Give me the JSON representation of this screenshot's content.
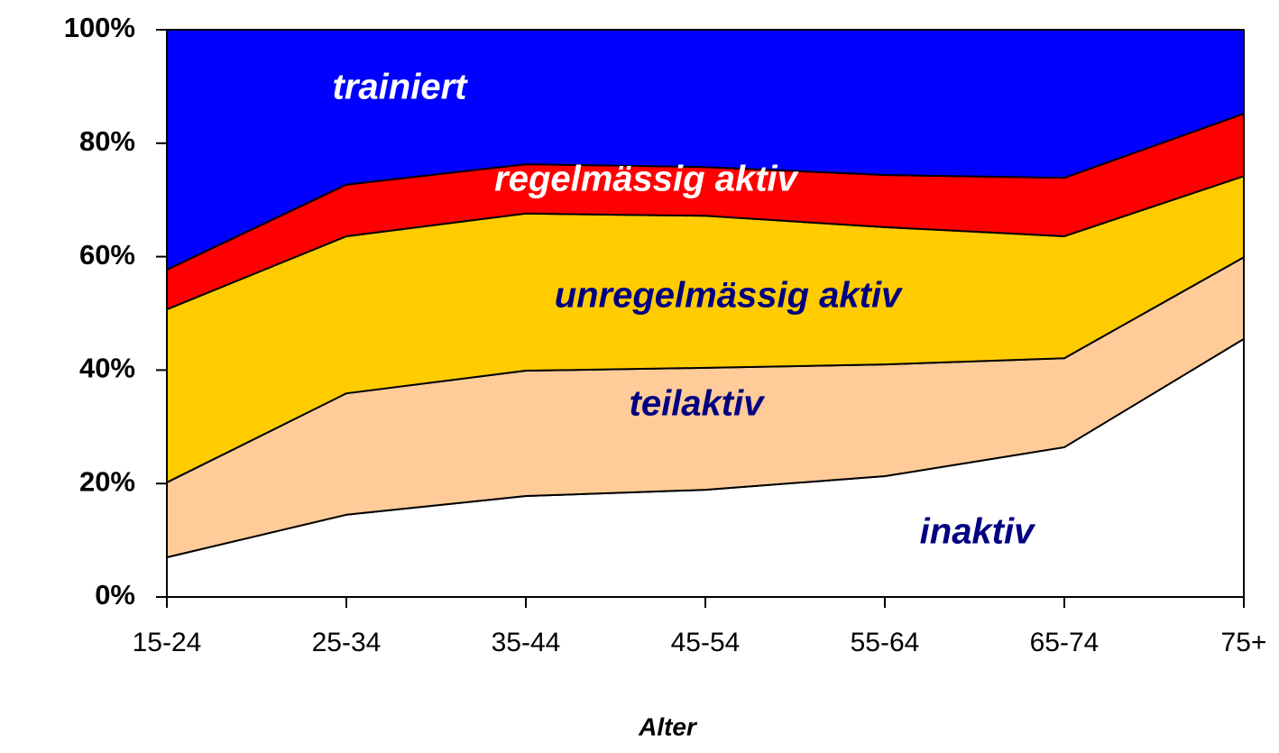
{
  "chart_data": {
    "type": "area",
    "stacked": true,
    "x_label": "Alter",
    "categories": [
      "15-24",
      "25-34",
      "35-44",
      "45-54",
      "55-64",
      "65-74",
      "75+"
    ],
    "series": [
      {
        "name": "inaktiv",
        "color": "#ffffff",
        "label_color": "#000080",
        "values": [
          7.0,
          14.5,
          17.8,
          18.9,
          21.3,
          26.4,
          45.5
        ]
      },
      {
        "name": "teilaktiv",
        "color": "#ffcc99",
        "label_color": "#000080",
        "values": [
          13.2,
          21.4,
          22.1,
          21.5,
          19.7,
          15.7,
          14.4
        ]
      },
      {
        "name": "unregelmässig aktiv",
        "color": "#ffcc00",
        "label_color": "#000080",
        "values": [
          30.5,
          27.7,
          27.7,
          26.8,
          24.2,
          21.5,
          14.3
        ]
      },
      {
        "name": "regelmässig aktiv",
        "color": "#ff0000",
        "label_color": "#ffffff",
        "values": [
          7.0,
          9.1,
          8.7,
          8.6,
          9.2,
          10.3,
          11.0
        ]
      },
      {
        "name": "trainiert",
        "color": "#0000ff",
        "label_color": "#ffffff",
        "values": [
          42.3,
          27.3,
          23.7,
          24.2,
          25.6,
          26.1,
          14.8
        ]
      }
    ],
    "ylim": [
      0,
      100
    ],
    "yticks": [
      {
        "value": 0,
        "label": "0%"
      },
      {
        "value": 20,
        "label": "20%"
      },
      {
        "value": 40,
        "label": "40%"
      },
      {
        "value": 60,
        "label": "60%"
      },
      {
        "value": 80,
        "label": "80%"
      },
      {
        "value": 100,
        "label": "100%"
      }
    ]
  }
}
